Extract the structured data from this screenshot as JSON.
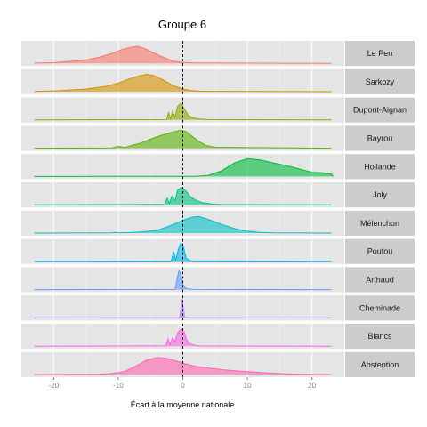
{
  "chart_data": {
    "type": "area",
    "title": "Groupe 6",
    "xlabel": "Écart à la moyenne nationale",
    "ylabel": "",
    "xlim": [
      -25,
      25
    ],
    "x_ticks": [
      -20,
      -10,
      0,
      10,
      20
    ],
    "x_tick_labels": [
      "-20",
      "-10",
      "0",
      "10",
      "20"
    ],
    "reference_line_x": 0,
    "grid": true,
    "legend": "none",
    "facets": [
      {
        "label": "Le Pen",
        "color": "#F8766D",
        "points": [
          [
            -23,
            0.01
          ],
          [
            -20,
            0.04
          ],
          [
            -17,
            0.12
          ],
          [
            -15,
            0.18
          ],
          [
            -13,
            0.32
          ],
          [
            -11,
            0.52
          ],
          [
            -9.5,
            0.72
          ],
          [
            -8,
            0.86
          ],
          [
            -7,
            0.9
          ],
          [
            -6,
            0.8
          ],
          [
            -4.5,
            0.55
          ],
          [
            -3,
            0.32
          ],
          [
            -1.5,
            0.12
          ],
          [
            0,
            0.05
          ],
          [
            2,
            0.02
          ],
          [
            23,
            0.0
          ]
        ]
      },
      {
        "label": "Sarkozy",
        "color": "#D39200",
        "points": [
          [
            -23,
            0.01
          ],
          [
            -19,
            0.05
          ],
          [
            -15,
            0.14
          ],
          [
            -12,
            0.28
          ],
          [
            -10,
            0.45
          ],
          [
            -8.5,
            0.65
          ],
          [
            -7,
            0.82
          ],
          [
            -5.5,
            0.92
          ],
          [
            -4.5,
            0.86
          ],
          [
            -3,
            0.62
          ],
          [
            -1.5,
            0.32
          ],
          [
            0,
            0.14
          ],
          [
            1.5,
            0.05
          ],
          [
            3,
            0.02
          ],
          [
            23,
            0.0
          ]
        ]
      },
      {
        "label": "Dupont-Aignan",
        "color": "#93AA00",
        "points": [
          [
            -23,
            0.0
          ],
          [
            -2.5,
            0.02
          ],
          [
            -2.2,
            0.38
          ],
          [
            -1.9,
            0.05
          ],
          [
            -1.6,
            0.45
          ],
          [
            -1.2,
            0.15
          ],
          [
            -0.8,
            0.72
          ],
          [
            -0.3,
            0.88
          ],
          [
            0.3,
            0.55
          ],
          [
            0.8,
            0.25
          ],
          [
            1.5,
            0.12
          ],
          [
            2.5,
            0.05
          ],
          [
            4,
            0.02
          ],
          [
            23,
            0.0
          ]
        ]
      },
      {
        "label": "Bayrou",
        "color": "#5BB300",
        "points": [
          [
            -23,
            0.0
          ],
          [
            -11,
            0.02
          ],
          [
            -10,
            0.1
          ],
          [
            -9,
            0.04
          ],
          [
            -8,
            0.14
          ],
          [
            -6.5,
            0.28
          ],
          [
            -5,
            0.48
          ],
          [
            -3.5,
            0.66
          ],
          [
            -2,
            0.82
          ],
          [
            -0.5,
            0.95
          ],
          [
            0.5,
            0.88
          ],
          [
            1.5,
            0.62
          ],
          [
            2.5,
            0.36
          ],
          [
            3.5,
            0.16
          ],
          [
            5,
            0.05
          ],
          [
            23,
            0.0
          ]
        ]
      },
      {
        "label": "Hollande",
        "color": "#00BA38",
        "points": [
          [
            -23,
            0.0
          ],
          [
            2,
            0.01
          ],
          [
            4,
            0.06
          ],
          [
            6,
            0.3
          ],
          [
            8,
            0.72
          ],
          [
            10,
            0.95
          ],
          [
            12,
            0.88
          ],
          [
            14,
            0.72
          ],
          [
            16,
            0.58
          ],
          [
            18,
            0.4
          ],
          [
            20,
            0.22
          ],
          [
            21.5,
            0.2
          ],
          [
            23,
            0.12
          ],
          [
            23.3,
            0.0
          ]
        ]
      },
      {
        "label": "Joly",
        "color": "#00C08B",
        "points": [
          [
            -23,
            0.0
          ],
          [
            -2.8,
            0.02
          ],
          [
            -2.4,
            0.35
          ],
          [
            -2.1,
            0.08
          ],
          [
            -1.7,
            0.45
          ],
          [
            -1.2,
            0.22
          ],
          [
            -0.8,
            0.78
          ],
          [
            -0.2,
            0.92
          ],
          [
            0.5,
            0.72
          ],
          [
            1.2,
            0.42
          ],
          [
            2,
            0.24
          ],
          [
            3,
            0.12
          ],
          [
            4.5,
            0.04
          ],
          [
            6,
            0.01
          ],
          [
            23,
            0.0
          ]
        ]
      },
      {
        "label": "Mélenchon",
        "color": "#00BFC4",
        "points": [
          [
            -23,
            0.0
          ],
          [
            -11,
            0.01
          ],
          [
            -10.5,
            0.04
          ],
          [
            -10,
            0.01
          ],
          [
            -8,
            0.03
          ],
          [
            -6,
            0.07
          ],
          [
            -4,
            0.14
          ],
          [
            -2,
            0.38
          ],
          [
            0,
            0.68
          ],
          [
            1.5,
            0.85
          ],
          [
            2.5,
            0.88
          ],
          [
            4,
            0.72
          ],
          [
            6,
            0.46
          ],
          [
            8,
            0.24
          ],
          [
            10,
            0.1
          ],
          [
            12,
            0.04
          ],
          [
            14,
            0.01
          ],
          [
            23,
            0.0
          ]
        ]
      },
      {
        "label": "Poutou",
        "color": "#00B4F0",
        "points": [
          [
            -23,
            0.0
          ],
          [
            -1.8,
            0.02
          ],
          [
            -1.4,
            0.5
          ],
          [
            -1.1,
            0.05
          ],
          [
            -0.7,
            0.62
          ],
          [
            -0.3,
            0.98
          ],
          [
            0.1,
            0.78
          ],
          [
            0.5,
            0.18
          ],
          [
            1.2,
            0.03
          ],
          [
            23,
            0.0
          ]
        ]
      },
      {
        "label": "Arthaud",
        "color": "#619CFF",
        "points": [
          [
            -23,
            0.0
          ],
          [
            -1.2,
            0.01
          ],
          [
            -0.9,
            0.55
          ],
          [
            -0.6,
            0.99
          ],
          [
            -0.3,
            0.82
          ],
          [
            0.0,
            0.28
          ],
          [
            0.5,
            0.05
          ],
          [
            1.5,
            0.01
          ],
          [
            23,
            0.0
          ]
        ]
      },
      {
        "label": "Cheminade",
        "color": "#B983FF",
        "points": [
          [
            -23,
            0.0
          ],
          [
            -0.5,
            0.01
          ],
          [
            -0.3,
            0.45
          ],
          [
            -0.1,
            0.99
          ],
          [
            0.1,
            0.45
          ],
          [
            0.3,
            0.05
          ],
          [
            0.6,
            0.01
          ],
          [
            23,
            0.0
          ]
        ]
      },
      {
        "label": "Blancs",
        "color": "#F564E3",
        "points": [
          [
            -23,
            0.0
          ],
          [
            -2.6,
            0.02
          ],
          [
            -2.3,
            0.38
          ],
          [
            -2.0,
            0.08
          ],
          [
            -1.6,
            0.45
          ],
          [
            -1.2,
            0.25
          ],
          [
            -0.8,
            0.7
          ],
          [
            -0.3,
            0.92
          ],
          [
            0.2,
            0.75
          ],
          [
            0.6,
            0.32
          ],
          [
            1.2,
            0.12
          ],
          [
            2,
            0.04
          ],
          [
            3,
            0.01
          ],
          [
            23,
            0.0
          ]
        ]
      },
      {
        "label": "Abstention",
        "color": "#FF64B0",
        "points": [
          [
            -23,
            0.0
          ],
          [
            -13,
            0.02
          ],
          [
            -11,
            0.05
          ],
          [
            -9,
            0.16
          ],
          [
            -7,
            0.5
          ],
          [
            -5.5,
            0.78
          ],
          [
            -4,
            0.9
          ],
          [
            -2.5,
            0.86
          ],
          [
            -1,
            0.72
          ],
          [
            0.5,
            0.56
          ],
          [
            2,
            0.44
          ],
          [
            4,
            0.34
          ],
          [
            6,
            0.26
          ],
          [
            8,
            0.2
          ],
          [
            10,
            0.15
          ],
          [
            12,
            0.11
          ],
          [
            14,
            0.07
          ],
          [
            16,
            0.04
          ],
          [
            18,
            0.02
          ],
          [
            23,
            0.0
          ]
        ]
      }
    ]
  }
}
